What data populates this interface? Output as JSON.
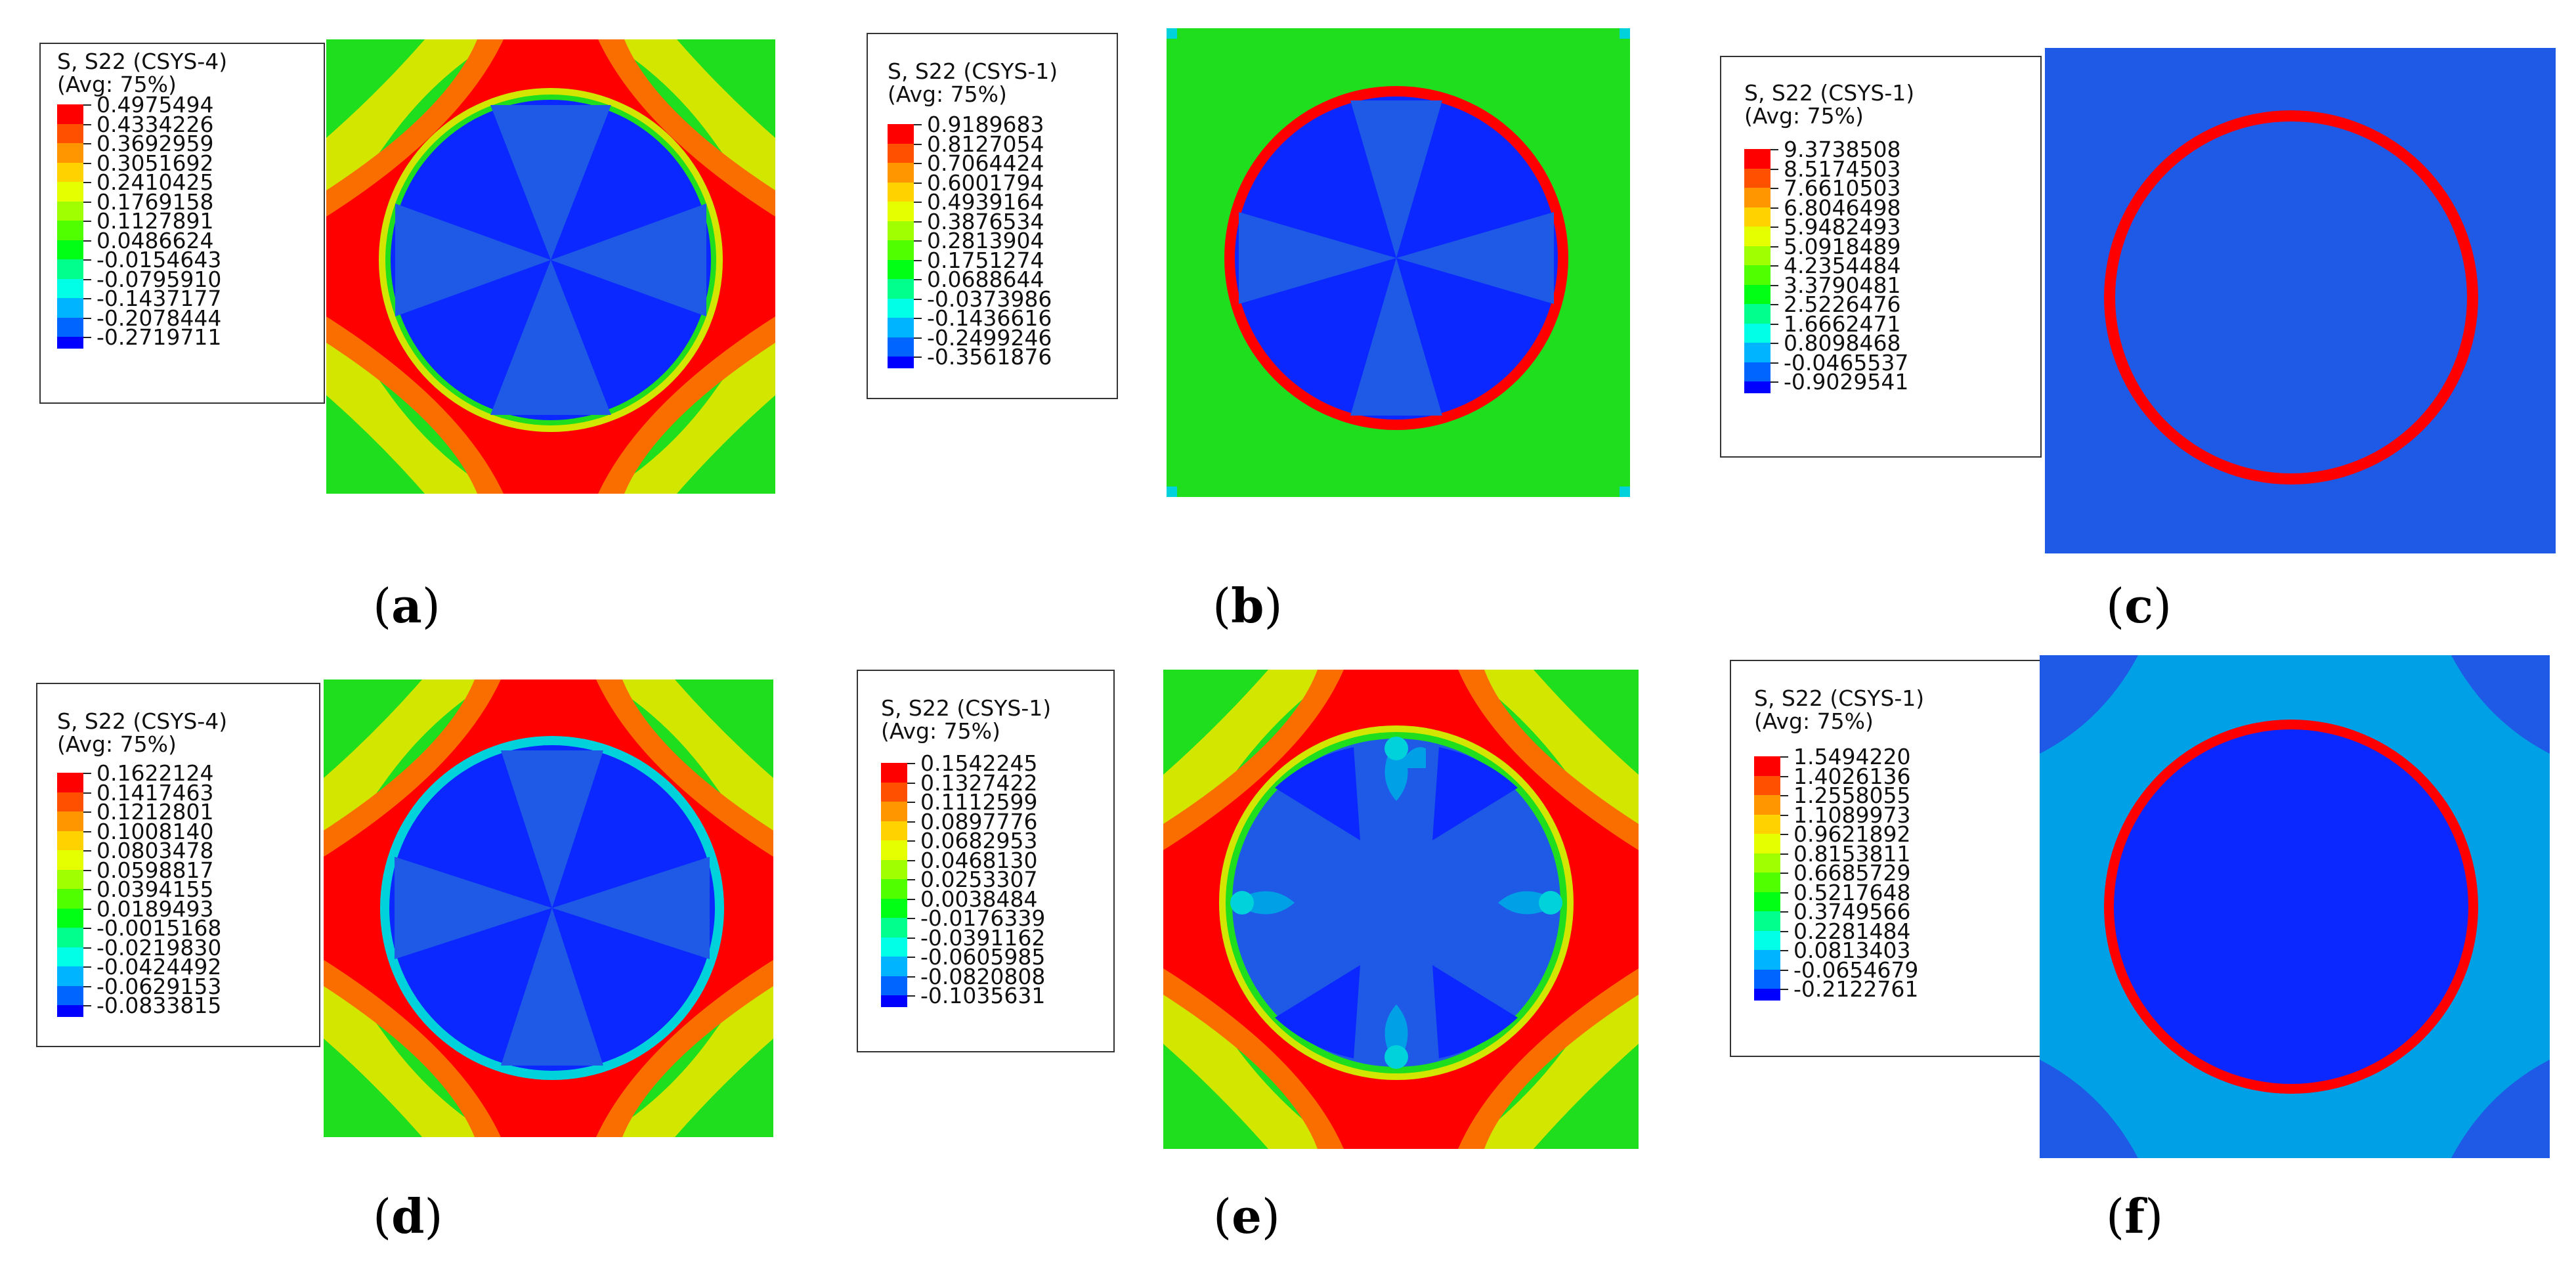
{
  "colors": {
    "contour_scale": [
      "#ff0000",
      "#ff5000",
      "#ff9600",
      "#ffd200",
      "#e6ff00",
      "#a0ff00",
      "#50ff00",
      "#00ff14",
      "#00ff8c",
      "#00ffe6",
      "#00b4ff",
      "#0064ff",
      "#0000ff"
    ],
    "plot_red": "#ff0000",
    "plot_orange": "#fa6e00",
    "plot_yellow": "#d2e600",
    "plot_green": "#1ede1e",
    "plot_blue_dark": "#0a28ff",
    "plot_blue_mid": "#1e5ae6",
    "plot_blue_light": "#00a0e6",
    "plot_cyan": "#00d2dc"
  },
  "panels": [
    {
      "id": "a",
      "caption_open": "(",
      "caption_letter": "a",
      "caption_close": ")",
      "legend_title_line1": "S, S22 (CSYS-4)",
      "legend_title_line2": "(Avg: 75%)",
      "values": [
        "0.4975494",
        "0.4334226",
        "0.3692959",
        "0.3051692",
        "0.2410425",
        "0.1769158",
        "0.1127891",
        "0.0486624",
        "-0.0154643",
        "-0.0795910",
        "-0.1437177",
        "-0.2078444",
        "-0.2719711"
      ]
    },
    {
      "id": "b",
      "caption_open": "(",
      "caption_letter": "b",
      "caption_close": ")",
      "legend_title_line1": "S, S22 (CSYS-1)",
      "legend_title_line2": "(Avg: 75%)",
      "values": [
        "0.9189683",
        "0.8127054",
        "0.7064424",
        "0.6001794",
        "0.4939164",
        "0.3876534",
        "0.2813904",
        "0.1751274",
        "0.0688644",
        "-0.0373986",
        "-0.1436616",
        "-0.2499246",
        "-0.3561876"
      ]
    },
    {
      "id": "c",
      "caption_open": "(",
      "caption_letter": "c",
      "caption_close": ")",
      "legend_title_line1": "S, S22 (CSYS-1)",
      "legend_title_line2": "(Avg: 75%)",
      "values": [
        "9.3738508",
        "8.5174503",
        "7.6610503",
        "6.8046498",
        "5.9482493",
        "5.0918489",
        "4.2354484",
        "3.3790481",
        "2.5226476",
        "1.6662471",
        "0.8098468",
        "-0.0465537",
        "-0.9029541"
      ]
    },
    {
      "id": "d",
      "caption_open": "(",
      "caption_letter": "d",
      "caption_close": ")",
      "legend_title_line1": "S, S22 (CSYS-4)",
      "legend_title_line2": "(Avg: 75%)",
      "values": [
        "0.1622124",
        "0.1417463",
        "0.1212801",
        "0.1008140",
        "0.0803478",
        "0.0598817",
        "0.0394155",
        "0.0189493",
        "-0.0015168",
        "-0.0219830",
        "-0.0424492",
        "-0.0629153",
        "-0.0833815"
      ]
    },
    {
      "id": "e",
      "caption_open": "(",
      "caption_letter": "e",
      "caption_close": ")",
      "legend_title_line1": "S, S22 (CSYS-1)",
      "legend_title_line2": "(Avg: 75%)",
      "values": [
        "0.1542245",
        "0.1327422",
        "0.1112599",
        "0.0897776",
        "0.0682953",
        "0.0468130",
        "0.0253307",
        "0.0038484",
        "-0.0176339",
        "-0.0391162",
        "-0.0605985",
        "-0.0820808",
        "-0.1035631"
      ]
    },
    {
      "id": "f",
      "caption_open": "(",
      "caption_letter": "f",
      "caption_close": ")",
      "legend_title_line1": "S, S22 (CSYS-1)",
      "legend_title_line2": "(Avg: 75%)",
      "values": [
        "1.5494220",
        "1.4026136",
        "1.2558055",
        "1.1089973",
        "0.9621892",
        "0.8153811",
        "0.6685729",
        "0.5217648",
        "0.3749566",
        "0.2281484",
        "0.0813403",
        "-0.0654679",
        "-0.2122761"
      ]
    }
  ]
}
